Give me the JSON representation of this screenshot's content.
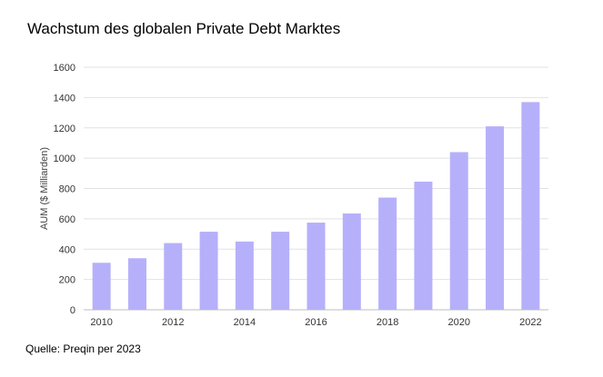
{
  "chart_data": {
    "type": "bar",
    "title": "Wachstum des globalen Private Debt Marktes",
    "xlabel": "",
    "ylabel": "AUM ($ Milliarden)",
    "categories": [
      "2010",
      "2011",
      "2012",
      "2013",
      "2014",
      "2015",
      "2016",
      "2017",
      "2018",
      "2019",
      "2020",
      "2021",
      "2022"
    ],
    "x_tick_labels": [
      "2010",
      "",
      "2012",
      "",
      "2014",
      "",
      "2016",
      "",
      "2018",
      "",
      "2020",
      "",
      "2022"
    ],
    "values": [
      310,
      340,
      440,
      515,
      450,
      515,
      575,
      635,
      740,
      845,
      1040,
      1210,
      1370
    ],
    "ylim": [
      0,
      1600
    ],
    "y_ticks": [
      0,
      200,
      400,
      600,
      800,
      1000,
      1200,
      1400,
      1600
    ],
    "grid": true,
    "legend": "none",
    "bar_color": "#b6b0fa",
    "grid_color": "#e2e2e2"
  },
  "source_note": "Quelle: Preqin per 2023"
}
